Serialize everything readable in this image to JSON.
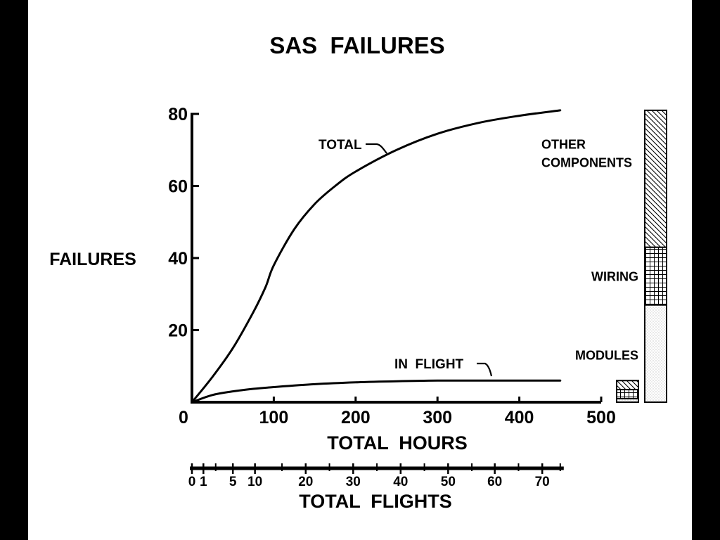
{
  "chart_data": {
    "type": "line",
    "title": "SAS  FAILURES",
    "ylabel": "FAILURES",
    "xlabel": "TOTAL  HOURS",
    "x2label": "TOTAL  FLIGHTS",
    "xlim": [
      0,
      500
    ],
    "ylim": [
      0,
      80
    ],
    "xticks": [
      0,
      100,
      200,
      300,
      400,
      500
    ],
    "yticks": [
      0,
      20,
      40,
      60,
      80
    ],
    "x_tick_labels": [
      "0",
      "100",
      "200",
      "300",
      "400",
      "500"
    ],
    "y_tick_labels": [
      "",
      "20",
      "40",
      "60",
      "80"
    ],
    "flights_axis": {
      "labels": [
        "0",
        "1",
        "5",
        "10",
        "20",
        "30",
        "40",
        "50",
        "60",
        "70"
      ],
      "hours": [
        0,
        14,
        50,
        77,
        139,
        197,
        255,
        313,
        370,
        428
      ],
      "minor_hours": [
        0,
        14,
        29,
        50,
        77,
        110,
        139,
        168,
        197,
        226,
        255,
        284,
        313,
        342,
        370,
        399,
        428,
        450
      ]
    },
    "series": [
      {
        "name": "TOTAL",
        "x": [
          0,
          25,
          50,
          75,
          90,
          100,
          125,
          150,
          175,
          200,
          250,
          300,
          350,
          400,
          450
        ],
        "y": [
          0,
          7,
          15,
          25,
          32,
          38,
          48,
          55,
          60,
          64,
          70,
          74.5,
          77.5,
          79.5,
          81
        ]
      },
      {
        "name": "IN FLIGHT",
        "x": [
          0,
          25,
          50,
          75,
          100,
          150,
          200,
          250,
          300,
          350,
          400,
          450
        ],
        "y": [
          0,
          2,
          3,
          3.7,
          4.2,
          5,
          5.5,
          5.8,
          6,
          6,
          6,
          6
        ]
      }
    ],
    "breakdown_bar": {
      "segments": [
        {
          "label": "MODULES",
          "value": 27,
          "pattern": "dots"
        },
        {
          "label": "WIRING",
          "value": 16,
          "pattern": "grid"
        },
        {
          "label": "OTHER\nCOMPONENTS",
          "value": 38,
          "pattern": "hatch"
        }
      ]
    },
    "in_flight_bar": {
      "segments": [
        {
          "label": "MODULES",
          "value": 1,
          "pattern": "dots"
        },
        {
          "label": "WIRING",
          "value": 2.5,
          "pattern": "grid"
        },
        {
          "label": "OTHER COMPONENTS",
          "value": 2.5,
          "pattern": "hatch"
        }
      ]
    },
    "annotations": [
      "TOTAL",
      "IN  FLIGHT"
    ]
  }
}
